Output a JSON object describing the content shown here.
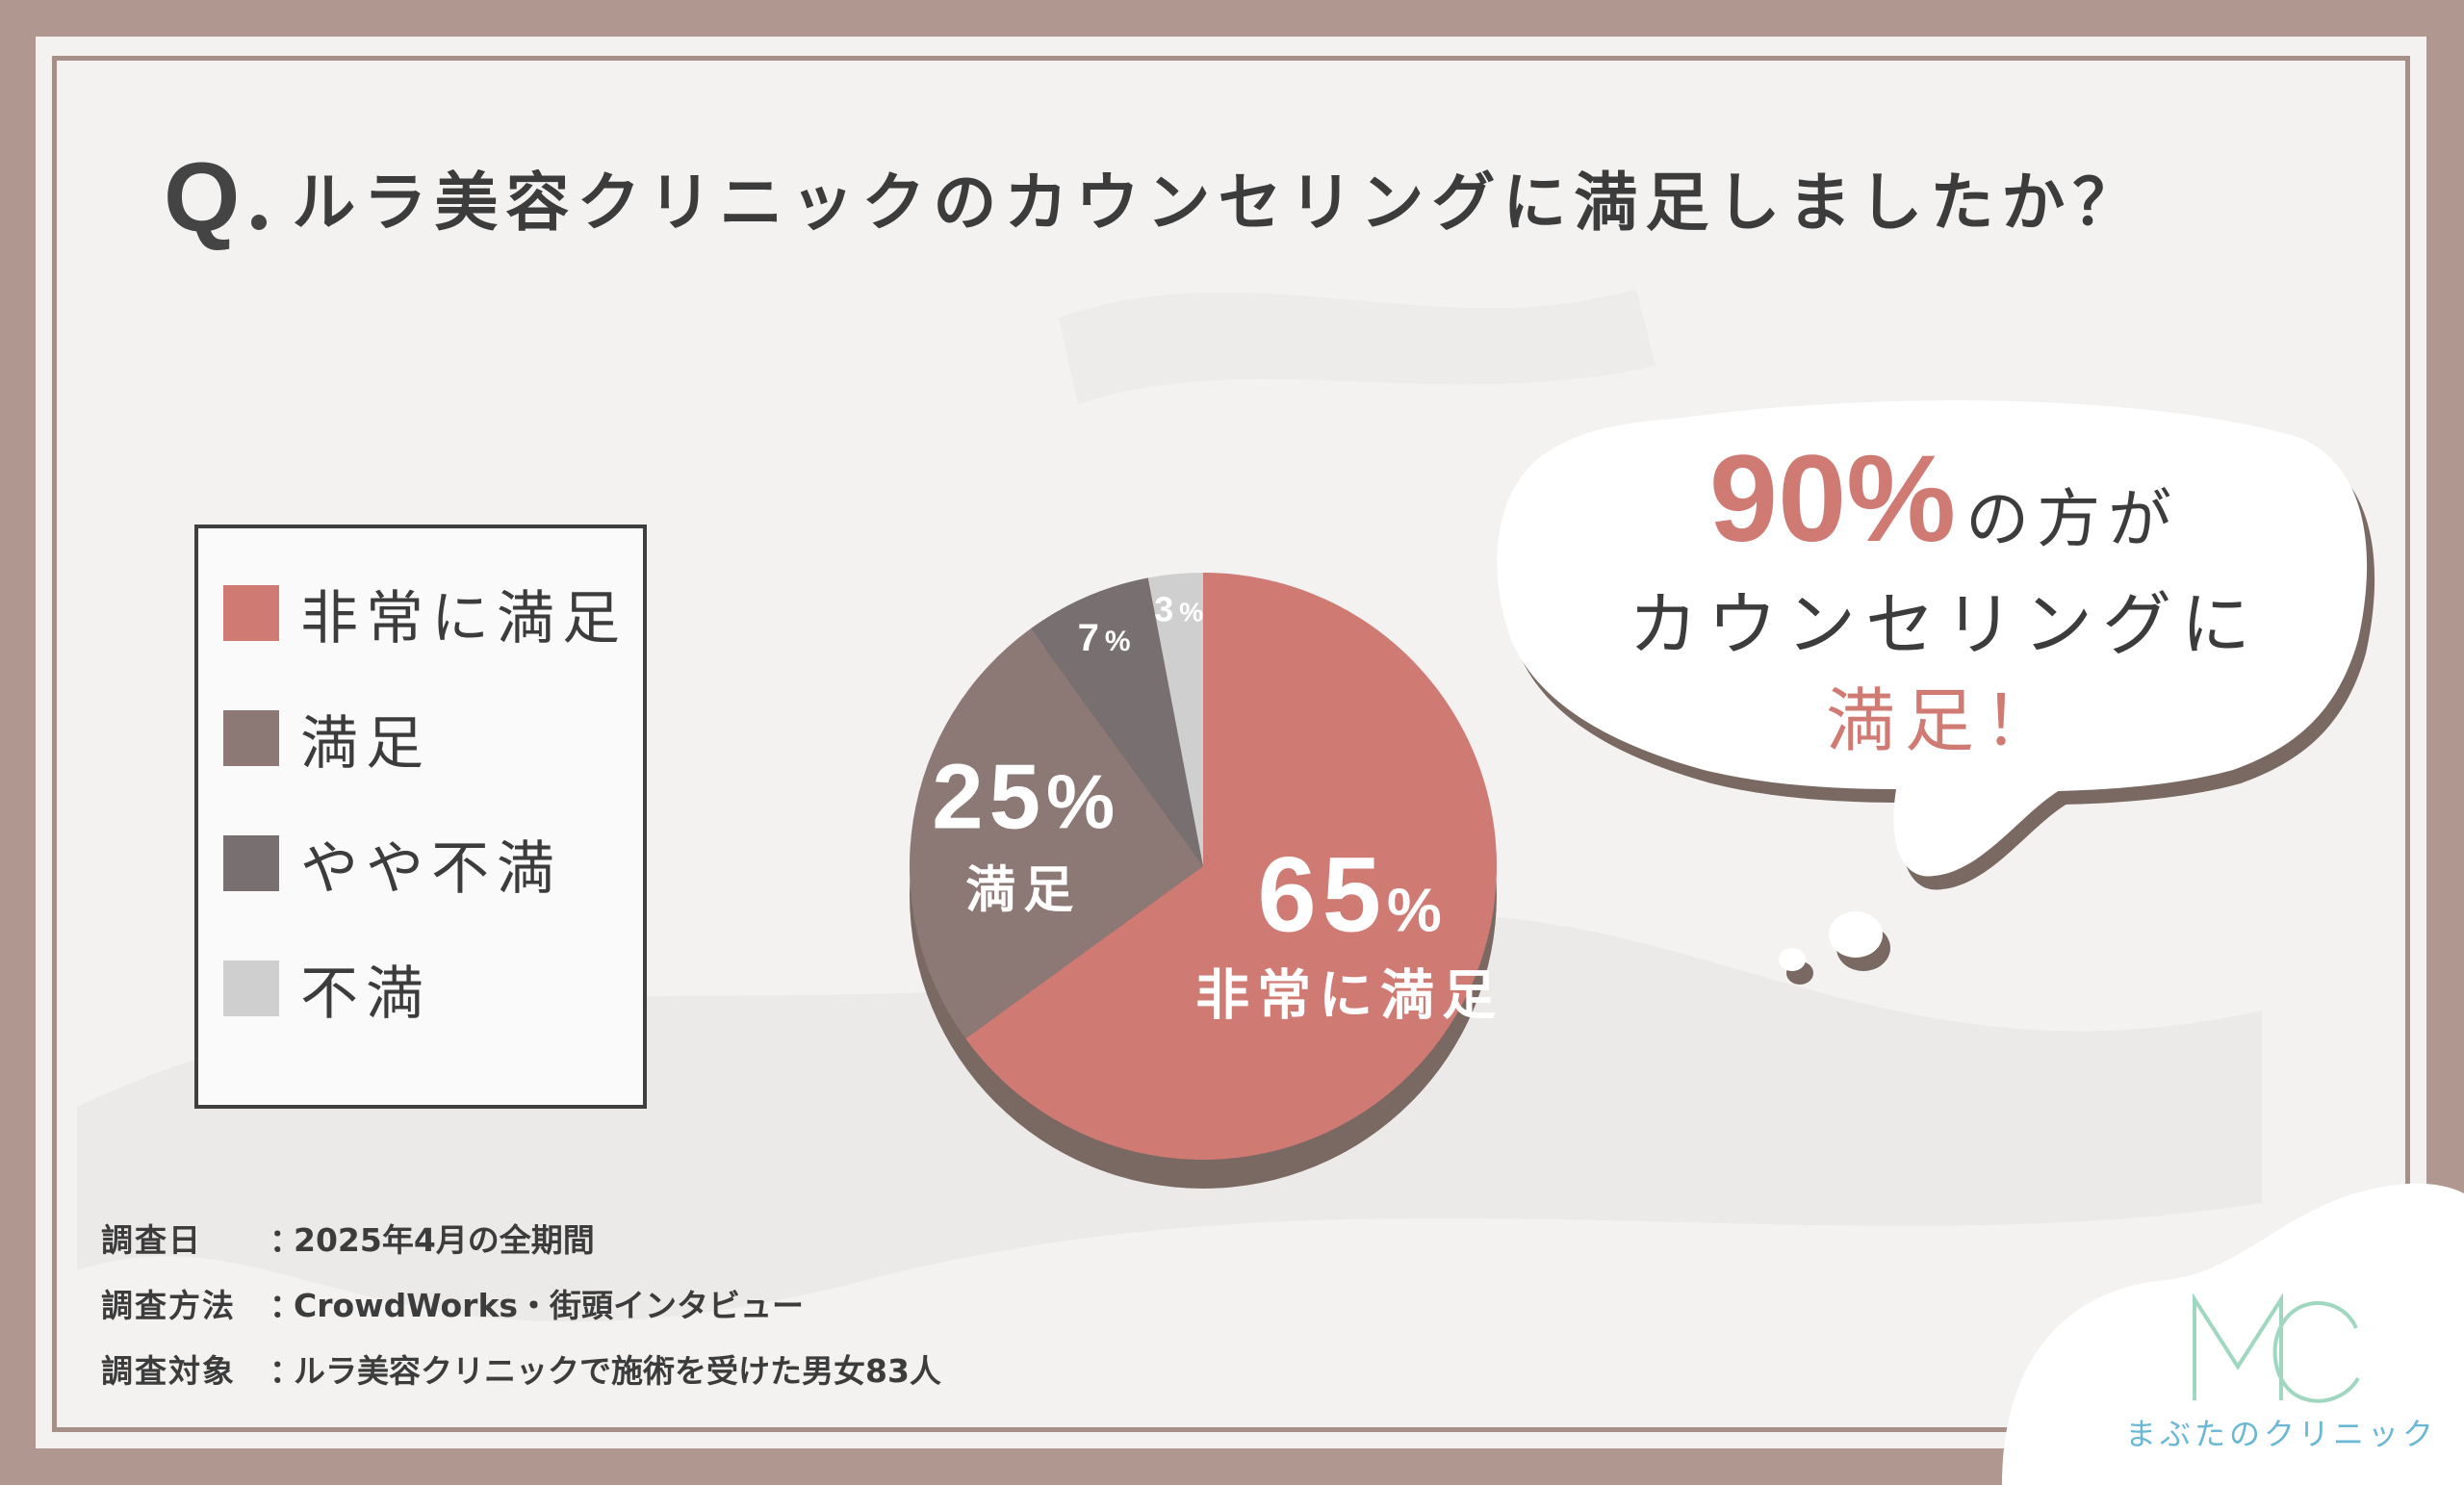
{
  "title": {
    "q": "Q",
    "text": "ルラ美容クリニックのカウンセリングに満足しましたか？"
  },
  "colors": {
    "very_satisfied": "#d07a74",
    "satisfied": "#8c7874",
    "somewhat_unsatisfied": "#787070",
    "unsatisfied": "#d0cfcf",
    "accent": "#d07a74",
    "logo": "#6ab7d6"
  },
  "legend": {
    "items": [
      {
        "label": "非常に満足",
        "color": "#d07a74"
      },
      {
        "label": "満足",
        "color": "#8c7874"
      },
      {
        "label": "やや不満",
        "color": "#787070"
      },
      {
        "label": "不満",
        "color": "#d0cfcf"
      }
    ]
  },
  "chart_data": {
    "type": "pie",
    "title": "ルラ美容クリニックのカウンセリングに満足しましたか？",
    "categories": [
      "非常に満足",
      "満足",
      "やや不満",
      "不満"
    ],
    "values": [
      65,
      25,
      7,
      3
    ],
    "unit": "%",
    "slice_labels": [
      {
        "value": "65",
        "unit": "%",
        "name": "非常に満足"
      },
      {
        "value": "25",
        "unit": "%",
        "name": "満足"
      },
      {
        "value": "7",
        "unit": "%",
        "name": ""
      },
      {
        "value": "3",
        "unit": "%",
        "name": ""
      }
    ]
  },
  "callout": {
    "percent": "90%",
    "line1_rest": "の方が",
    "line2": "カウンセリングに",
    "line3": "満足！"
  },
  "survey": {
    "rows": [
      {
        "key": "調査日",
        "sep": "：",
        "value": "2025年4月の全期間"
      },
      {
        "key": "調査方法",
        "sep": "：",
        "value": "CrowdWorks・街頭インタビュー"
      },
      {
        "key": "調査対象",
        "sep": "：",
        "value": "ルラ美容クリニックで施術を受けた男女83人"
      }
    ]
  },
  "logo": {
    "text": "まぶたのクリニック"
  }
}
